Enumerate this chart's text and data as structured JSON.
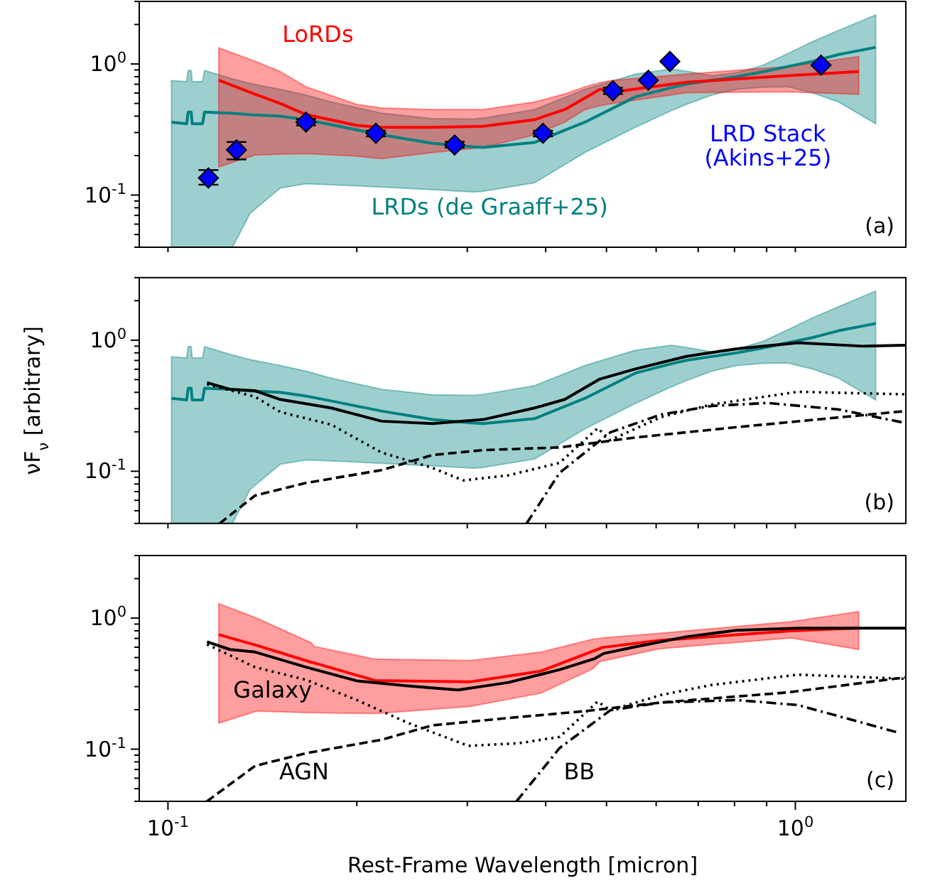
{
  "chart_data": [
    {
      "type": "line",
      "log": "xy",
      "tick_labels": "y",
      "xlim": [
        0.09,
        1.5
      ],
      "ylim": [
        0.04,
        3
      ],
      "xticks": [
        {
          "value": 0.1,
          "label": null
        },
        {
          "value": 0.2,
          "label": null
        },
        {
          "value": 0.3,
          "label": null
        },
        {
          "value": 0.4,
          "label": null
        },
        {
          "value": 0.5,
          "label": null
        },
        {
          "value": 0.6,
          "label": null
        },
        {
          "value": 0.7,
          "label": null
        },
        {
          "value": 0.8,
          "label": null
        },
        {
          "value": 0.9,
          "label": null
        },
        {
          "value": 1,
          "label": null
        }
      ],
      "yticks": [
        {
          "value": 0.04,
          "label": null
        },
        {
          "value": 0.05,
          "label": null
        },
        {
          "value": 0.06,
          "label": null
        },
        {
          "value": 0.07,
          "label": null
        },
        {
          "value": 0.08,
          "label": null
        },
        {
          "value": 0.09,
          "label": null
        },
        {
          "value": 0.1,
          "label": "10$^{-1}$"
        },
        {
          "value": 0.2,
          "label": null
        },
        {
          "value": 0.3,
          "label": null
        },
        {
          "value": 0.4,
          "label": null
        },
        {
          "value": 0.5,
          "label": null
        },
        {
          "value": 0.6,
          "label": null
        },
        {
          "value": 0.7,
          "label": null
        },
        {
          "value": 0.8,
          "label": null
        },
        {
          "value": 0.9,
          "label": null
        },
        {
          "value": 1,
          "label": "10$^{0}$"
        },
        {
          "value": 2,
          "label": null
        },
        {
          "value": 3,
          "label": null
        }
      ],
      "annotations": [
        "(a)"
      ],
      "series": [
        {
          "name": "LRDs (de Graaff+25)",
          "color": "#008080",
          "x": [
            0.1013,
            0.1071,
            0.1077,
            0.1089,
            0.1093,
            0.1135,
            0.1144,
            0.1267,
            0.1352,
            0.151,
            0.166,
            0.182,
            0.219,
            0.264,
            0.3067,
            0.318,
            0.384,
            0.462,
            0.556,
            0.634,
            0.67,
            0.736,
            0.807,
            0.886,
            0.973,
            1.068,
            1.172,
            1.343
          ],
          "values": [
            0.36,
            0.35,
            0.43,
            0.43,
            0.35,
            0.35,
            0.43,
            0.42,
            0.41,
            0.4,
            0.375,
            0.344,
            0.288,
            0.248,
            0.233,
            0.231,
            0.252,
            0.36,
            0.561,
            0.66,
            0.701,
            0.75,
            0.801,
            0.87,
            0.956,
            1.05,
            1.18,
            1.34
          ],
          "upper": [
            0.746,
            0.733,
            0.891,
            0.891,
            0.733,
            0.733,
            0.891,
            0.77,
            0.71,
            0.641,
            0.58,
            0.513,
            0.422,
            0.383,
            0.38,
            0.386,
            0.449,
            0.641,
            0.837,
            0.915,
            0.88,
            0.815,
            0.86,
            0.974,
            1.2,
            1.49,
            1.8,
            2.37
          ],
          "lower": [
            0.04,
            0.04,
            0.04,
            0.04,
            0.04,
            0.04,
            0.04,
            0.04,
            0.0726,
            0.113,
            0.122,
            0.12,
            0.115,
            0.11,
            0.1055,
            0.107,
            0.124,
            0.211,
            0.329,
            0.44,
            0.491,
            0.58,
            0.641,
            0.665,
            0.67,
            0.6,
            0.513,
            0.35
          ]
        },
        {
          "name": "LoRDs",
          "color": "#ff0000",
          "x": [
            0.1205,
            0.1377,
            0.151,
            0.166,
            0.2,
            0.219,
            0.264,
            0.318,
            0.384,
            0.429,
            0.462,
            0.488,
            0.512,
            0.531,
            0.67,
            0.973,
            1.262
          ],
          "values": [
            0.752,
            0.587,
            0.5,
            0.411,
            0.34,
            0.329,
            0.329,
            0.335,
            0.376,
            0.449,
            0.55,
            0.641,
            0.63,
            0.624,
            0.725,
            0.815,
            0.875
          ],
          "upper": [
            1.33,
            1.05,
            0.875,
            0.67,
            0.491,
            0.462,
            0.449,
            0.449,
            0.513,
            0.59,
            0.67,
            0.72,
            0.752,
            0.76,
            0.837,
            0.956,
            1.14
          ],
          "lower": [
            0.164,
            0.202,
            0.205,
            0.207,
            0.198,
            0.19,
            0.211,
            0.231,
            0.288,
            0.36,
            0.449,
            0.48,
            0.5,
            0.513,
            0.603,
            0.613,
            0.587
          ]
        },
        {
          "name": "LRD Stack (Akins+25)",
          "type": "scatter",
          "color": "#0000ff",
          "marker": "diamond",
          "x": [
            0.116,
            0.1286,
            0.166,
            0.2145,
            0.2864,
            0.396,
            0.512,
            0.583,
            0.631,
            1.099
          ],
          "values": [
            0.135,
            0.221,
            0.36,
            0.296,
            0.241,
            0.296,
            0.624,
            0.752,
            1.045,
            0.98
          ],
          "errors": [
            [
              0.12,
              0.155
            ],
            [
              0.187,
              0.254
            ],
            [
              0.34,
              0.38
            ],
            [
              0.28,
              0.31
            ],
            [
              0.23,
              0.255
            ],
            [
              0.28,
              0.31
            ],
            [
              0.59,
              0.66
            ],
            null,
            null,
            null
          ]
        }
      ]
    },
    {
      "type": "line",
      "log": "xy",
      "tick_labels": "y",
      "xlim": [
        0.09,
        1.5
      ],
      "ylim": [
        0.04,
        3
      ],
      "ylabel": "νF$_{ν}$ [arbitrary]",
      "xticks": [
        {
          "value": 0.1,
          "label": null
        },
        {
          "value": 0.2,
          "label": null
        },
        {
          "value": 0.3,
          "label": null
        },
        {
          "value": 0.4,
          "label": null
        },
        {
          "value": 0.5,
          "label": null
        },
        {
          "value": 0.6,
          "label": null
        },
        {
          "value": 0.7,
          "label": null
        },
        {
          "value": 0.8,
          "label": null
        },
        {
          "value": 0.9,
          "label": null
        },
        {
          "value": 1,
          "label": null
        }
      ],
      "yticks": [
        {
          "value": 0.04,
          "label": null
        },
        {
          "value": 0.05,
          "label": null
        },
        {
          "value": 0.06,
          "label": null
        },
        {
          "value": 0.07,
          "label": null
        },
        {
          "value": 0.08,
          "label": null
        },
        {
          "value": 0.09,
          "label": null
        },
        {
          "value": 0.1,
          "label": "10$^{-1}$"
        },
        {
          "value": 0.2,
          "label": null
        },
        {
          "value": 0.3,
          "label": null
        },
        {
          "value": 0.4,
          "label": null
        },
        {
          "value": 0.5,
          "label": null
        },
        {
          "value": 0.6,
          "label": null
        },
        {
          "value": 0.7,
          "label": null
        },
        {
          "value": 0.8,
          "label": null
        },
        {
          "value": 0.9,
          "label": null
        },
        {
          "value": 1,
          "label": "10$^{0}$"
        },
        {
          "value": 2,
          "label": null
        },
        {
          "value": 3,
          "label": null
        }
      ],
      "annotations": [
        "(b)"
      ],
      "series": [
        {
          "color": "#008080",
          "x": [
            0.1013,
            0.1071,
            0.1077,
            0.1089,
            0.1093,
            0.1135,
            0.1144,
            0.1267,
            0.1352,
            0.151,
            0.166,
            0.182,
            0.219,
            0.264,
            0.3067,
            0.318,
            0.384,
            0.462,
            0.556,
            0.634,
            0.67,
            0.736,
            0.807,
            0.886,
            0.973,
            1.068,
            1.172,
            1.343
          ],
          "values": [
            0.36,
            0.35,
            0.43,
            0.43,
            0.35,
            0.35,
            0.43,
            0.42,
            0.41,
            0.4,
            0.375,
            0.344,
            0.288,
            0.248,
            0.233,
            0.231,
            0.252,
            0.36,
            0.561,
            0.66,
            0.701,
            0.75,
            0.801,
            0.87,
            0.956,
            1.05,
            1.18,
            1.34
          ],
          "upper": [
            0.746,
            0.733,
            0.891,
            0.891,
            0.733,
            0.733,
            0.891,
            0.77,
            0.71,
            0.641,
            0.58,
            0.513,
            0.422,
            0.383,
            0.38,
            0.386,
            0.449,
            0.641,
            0.837,
            0.915,
            0.88,
            0.815,
            0.86,
            0.974,
            1.2,
            1.49,
            1.8,
            2.37
          ],
          "lower": [
            0.04,
            0.04,
            0.04,
            0.04,
            0.04,
            0.04,
            0.04,
            0.04,
            0.0726,
            0.113,
            0.122,
            0.12,
            0.115,
            0.11,
            0.1055,
            0.107,
            0.124,
            0.211,
            0.329,
            0.44,
            0.491,
            0.58,
            0.641,
            0.665,
            0.67,
            0.6,
            0.513,
            0.35
          ]
        },
        {
          "color": "#000000",
          "x": [
            0.1154,
            0.1255,
            0.1377,
            0.151,
            0.182,
            0.219,
            0.264,
            0.318,
            0.384,
            0.429,
            0.488,
            0.556,
            0.67,
            0.807,
            1.01,
            1.286,
            1.5
          ],
          "values": [
            0.474,
            0.422,
            0.411,
            0.353,
            0.304,
            0.241,
            0.231,
            0.248,
            0.304,
            0.353,
            0.505,
            0.603,
            0.752,
            0.86,
            0.956,
            0.899,
            0.915
          ]
        },
        {
          "color": "#000000",
          "line_style": "dotted",
          "x": [
            0.1154,
            0.1377,
            0.151,
            0.182,
            0.219,
            0.264,
            0.2955,
            0.349,
            0.421,
            0.484,
            0.507,
            0.611,
            0.736,
            1.01,
            1.5
          ],
          "values": [
            0.461,
            0.37,
            0.283,
            0.227,
            0.139,
            0.106,
            0.0852,
            0.0931,
            0.116,
            0.213,
            0.173,
            0.259,
            0.323,
            0.404,
            0.386
          ]
        },
        {
          "color": "#000000",
          "line_style": "dashed",
          "x": [
            0.1209,
            0.1377,
            0.166,
            0.219,
            0.264,
            0.318,
            0.421,
            0.556,
            0.807,
            1.5
          ],
          "values": [
            0.04,
            0.0653,
            0.0815,
            0.102,
            0.133,
            0.145,
            0.152,
            0.181,
            0.217,
            0.288
          ]
        },
        {
          "color": "#000000",
          "line_style": "dashdot",
          "x": [
            0.373,
            0.421,
            0.507,
            0.611,
            0.736,
            0.903,
            1.172,
            1.5
          ],
          "values": [
            0.04,
            0.0974,
            0.198,
            0.271,
            0.315,
            0.332,
            0.296,
            0.233
          ]
        }
      ]
    },
    {
      "type": "line",
      "log": "xy",
      "xlim": [
        0.09,
        1.5
      ],
      "ylim": [
        0.04,
        3
      ],
      "xlabel": "Rest-Frame Wavelength [micron]",
      "xticks": [
        {
          "value": 0.1,
          "label": "10$^{-1}$"
        },
        {
          "value": 0.2,
          "label": null
        },
        {
          "value": 0.3,
          "label": null
        },
        {
          "value": 0.4,
          "label": null
        },
        {
          "value": 0.5,
          "label": null
        },
        {
          "value": 0.6,
          "label": null
        },
        {
          "value": 0.7,
          "label": null
        },
        {
          "value": 0.8,
          "label": null
        },
        {
          "value": 0.9,
          "label": null
        },
        {
          "value": 1,
          "label": "10$^{0}$"
        }
      ],
      "yticks": [
        {
          "value": 0.04,
          "label": null
        },
        {
          "value": 0.05,
          "label": null
        },
        {
          "value": 0.06,
          "label": null
        },
        {
          "value": 0.07,
          "label": null
        },
        {
          "value": 0.08,
          "label": null
        },
        {
          "value": 0.09,
          "label": null
        },
        {
          "value": 0.1,
          "label": "10$^{-1}$"
        },
        {
          "value": 0.2,
          "label": null
        },
        {
          "value": 0.3,
          "label": null
        },
        {
          "value": 0.4,
          "label": null
        },
        {
          "value": 0.5,
          "label": null
        },
        {
          "value": 0.6,
          "label": null
        },
        {
          "value": 0.7,
          "label": null
        },
        {
          "value": 0.8,
          "label": null
        },
        {
          "value": 0.9,
          "label": null
        },
        {
          "value": 1,
          "label": "10$^{0}$"
        },
        {
          "value": 2,
          "label": null
        },
        {
          "value": 3,
          "label": null
        }
      ],
      "annotations": [
        "(c)"
      ],
      "series": [
        {
          "color": "#ff0000",
          "x": [
            0.1205,
            0.1384,
            0.1692,
            0.171,
            0.2138,
            0.3027,
            0.3926,
            0.4756,
            0.488,
            0.4923,
            0.607,
            0.986,
            1.262
          ],
          "values": [
            0.747,
            0.62,
            0.46,
            0.455,
            0.334,
            0.326,
            0.394,
            0.56,
            0.585,
            0.597,
            0.676,
            0.8,
            0.84
          ],
          "upper": [
            1.29,
            1.0,
            0.648,
            0.608,
            0.486,
            0.474,
            0.55,
            0.69,
            0.7,
            0.706,
            0.766,
            0.94,
            1.12
          ],
          "lower": [
            0.158,
            0.195,
            0.19,
            0.19,
            0.187,
            0.2115,
            0.267,
            0.411,
            0.466,
            0.47,
            0.583,
            0.706,
            0.576
          ]
        },
        {
          "color": "#000000",
          "x": [
            0.1154,
            0.1255,
            0.1377,
            0.166,
            0.2,
            0.241,
            0.29,
            0.349,
            0.421,
            0.479,
            0.495,
            0.556,
            0.67,
            0.807,
            1.01,
            1.5
          ],
          "values": [
            0.659,
            0.576,
            0.551,
            0.422,
            0.332,
            0.304,
            0.283,
            0.323,
            0.404,
            0.491,
            0.537,
            0.603,
            0.72,
            0.808,
            0.837,
            0.837
          ]
        },
        {
          "name": "Galaxy",
          "color": "#000000",
          "line_style": "dotted",
          "x": [
            0.1154,
            0.1377,
            0.166,
            0.2,
            0.241,
            0.301,
            0.3627,
            0.421,
            0.484,
            0.507,
            0.611,
            0.736,
            1.01,
            1.5
          ],
          "values": [
            0.63,
            0.422,
            0.338,
            0.237,
            0.159,
            0.106,
            0.111,
            0.124,
            0.231,
            0.198,
            0.259,
            0.309,
            0.37,
            0.344
          ]
        },
        {
          "name": "AGN",
          "color": "#000000",
          "line_style": "dashed",
          "x": [
            0.1154,
            0.1377,
            0.166,
            0.219,
            0.264,
            0.349,
            0.462,
            0.611,
            0.973,
            1.5
          ],
          "values": [
            0.04,
            0.0746,
            0.0931,
            0.118,
            0.152,
            0.173,
            0.195,
            0.227,
            0.271,
            0.353
          ]
        },
        {
          "name": "BB",
          "color": "#000000",
          "line_style": "dashdot",
          "x": [
            0.3594,
            0.421,
            0.507,
            0.611,
            0.807,
            1.01,
            1.466
          ],
          "values": [
            0.04,
            0.102,
            0.198,
            0.227,
            0.237,
            0.217,
            0.133
          ]
        }
      ]
    }
  ]
}
